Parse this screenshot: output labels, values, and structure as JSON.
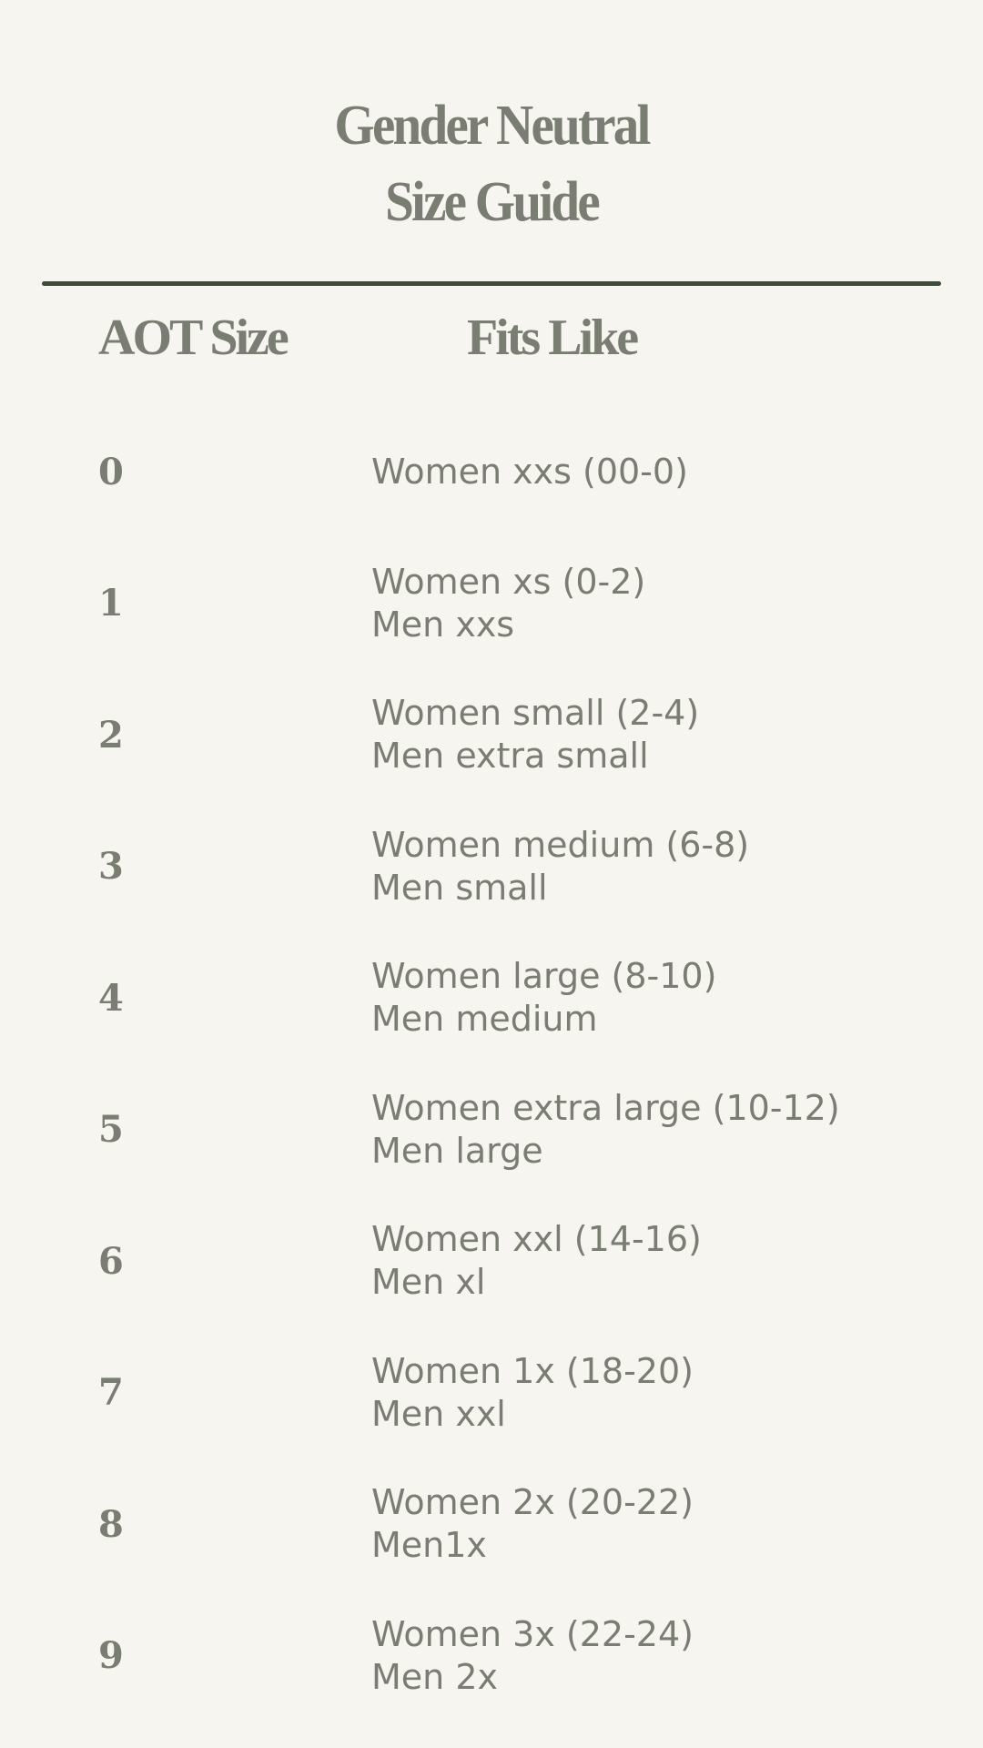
{
  "title": {
    "line1": "Gender Neutral",
    "line2": "Size Guide"
  },
  "headers": {
    "size": "AOT Size",
    "fits": "Fits Like"
  },
  "colors": {
    "background": "#f7f5ef",
    "text": "#7a7d72",
    "rule": "#3f4a3a"
  },
  "rows": [
    {
      "size": "0",
      "lines": [
        "Women xxs (00-0)"
      ]
    },
    {
      "size": "1",
      "lines": [
        "Women xs (0-2)",
        "Men xxs"
      ]
    },
    {
      "size": "2",
      "lines": [
        "Women small (2-4)",
        "Men extra small"
      ]
    },
    {
      "size": "3",
      "lines": [
        "Women medium (6-8)",
        "Men small"
      ]
    },
    {
      "size": "4",
      "lines": [
        "Women large (8-10)",
        "Men medium"
      ]
    },
    {
      "size": "5",
      "lines": [
        "Women extra large (10-12)",
        "Men large"
      ]
    },
    {
      "size": "6",
      "lines": [
        "Women xxl (14-16)",
        "Men xl"
      ]
    },
    {
      "size": "7",
      "lines": [
        "Women 1x (18-20)",
        "Men xxl"
      ]
    },
    {
      "size": "8",
      "lines": [
        "Women 2x (20-22)",
        "Men1x"
      ]
    },
    {
      "size": "9",
      "lines": [
        "Women 3x (22-24)",
        "Men 2x"
      ]
    }
  ]
}
